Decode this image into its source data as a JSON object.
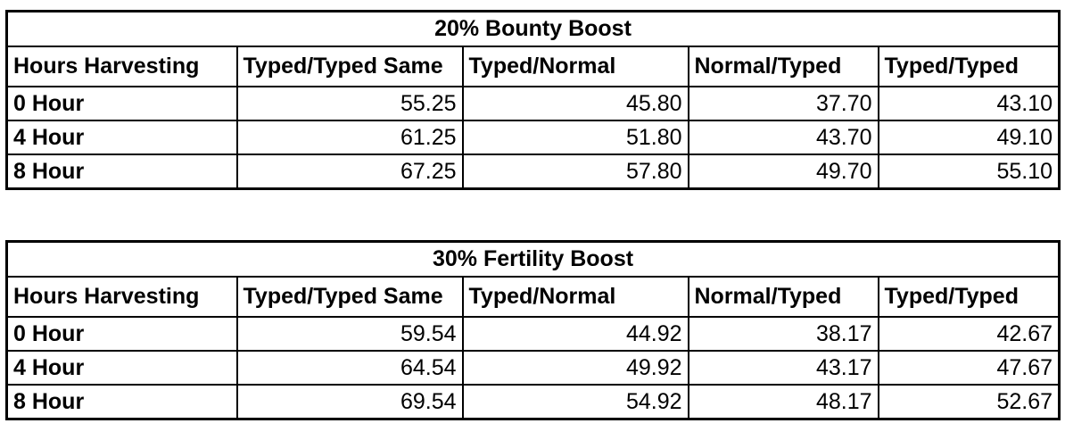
{
  "tables": [
    {
      "title": "20% Bounty Boost",
      "headers": [
        "Hours Harvesting",
        "Typed/Typed Same",
        "Typed/Normal",
        "Normal/Typed",
        "Typed/Typed"
      ],
      "rows": [
        {
          "label": "0 Hour",
          "values": [
            "55.25",
            "45.80",
            "37.70",
            "43.10"
          ]
        },
        {
          "label": "4 Hour",
          "values": [
            "61.25",
            "51.80",
            "43.70",
            "49.10"
          ]
        },
        {
          "label": "8 Hour",
          "values": [
            "67.25",
            "57.80",
            "49.70",
            "55.10"
          ]
        }
      ]
    },
    {
      "title": "30% Fertility Boost",
      "headers": [
        "Hours Harvesting",
        "Typed/Typed Same",
        "Typed/Normal",
        "Normal/Typed",
        "Typed/Typed"
      ],
      "rows": [
        {
          "label": "0 Hour",
          "values": [
            "59.54",
            "44.92",
            "38.17",
            "42.67"
          ]
        },
        {
          "label": "4 Hour",
          "values": [
            "64.54",
            "49.92",
            "43.17",
            "47.67"
          ]
        },
        {
          "label": "8 Hour",
          "values": [
            "69.54",
            "54.92",
            "48.17",
            "52.67"
          ]
        }
      ]
    }
  ]
}
